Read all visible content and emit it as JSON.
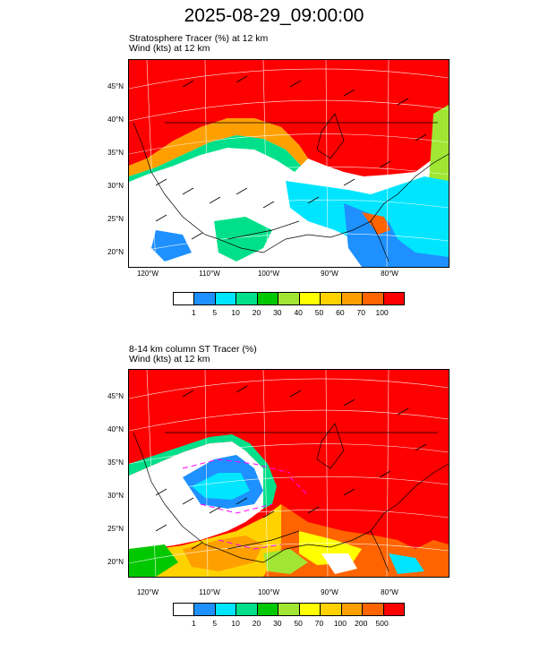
{
  "title": "2025-08-29_09:00:00",
  "panels": [
    {
      "title_line1": "Stratosphere Tracer   (%)     at   12 km",
      "title_line2": "Wind   (kts)     at   12 km",
      "lat_labels": [
        "45°N",
        "40°N",
        "35°N",
        "30°N",
        "25°N",
        "20°N"
      ],
      "lon_labels": [
        "120°W",
        "110°W",
        "100°W",
        "90°W",
        "80°W"
      ],
      "colorbar": {
        "colors": [
          "#ffffff",
          "#1e90ff",
          "#00e5ff",
          "#00e08a",
          "#00c800",
          "#a0e632",
          "#ffff00",
          "#ffd200",
          "#ffa000",
          "#ff6400",
          "#ff0000"
        ],
        "labels": [
          "1",
          "5",
          "10",
          "20",
          "30",
          "40",
          "50",
          "60",
          "70",
          "100"
        ]
      }
    },
    {
      "title_line1": "8-14 km column ST Tracer   (%)",
      "title_line2": "Wind   (kts)     at   12 km",
      "lat_labels": [
        "45°N",
        "40°N",
        "35°N",
        "30°N",
        "25°N",
        "20°N"
      ],
      "lon_labels": [
        "120°W",
        "110°W",
        "100°W",
        "90°W",
        "80°W"
      ],
      "colorbar": {
        "colors": [
          "#ffffff",
          "#1e90ff",
          "#00e5ff",
          "#00e08a",
          "#00c800",
          "#a0e632",
          "#ffff00",
          "#ffd200",
          "#ffa000",
          "#ff6400",
          "#ff0000"
        ],
        "labels": [
          "1",
          "5",
          "10",
          "20",
          "30",
          "50",
          "70",
          "100",
          "200",
          "500"
        ]
      }
    }
  ]
}
